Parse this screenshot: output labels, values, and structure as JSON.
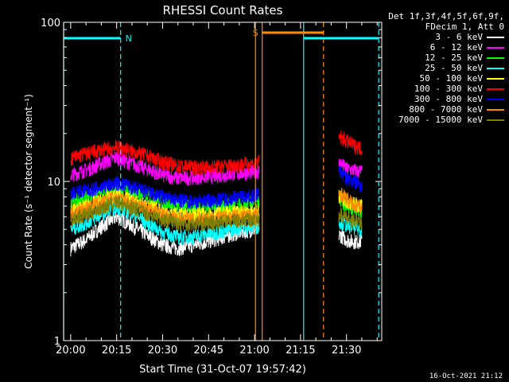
{
  "chart_data": {
    "type": "line",
    "title": "RHESSI Count Rates",
    "xlabel": "Start Time (31-Oct-07 19:57:42)",
    "ylabel": "Count Rate (s⁻¹ detector segment⁻¹)",
    "x_ticks": [
      "20:00",
      "20:15",
      "20:30",
      "20:45",
      "21:00",
      "21:15",
      "21:30"
    ],
    "x_tick_minutes": [
      0,
      15,
      30,
      45,
      60,
      75,
      90
    ],
    "x_range_minutes": [
      -2.3,
      101.5
    ],
    "y_scale": "log",
    "y_ticks": [
      "1",
      "10",
      "100"
    ],
    "ylim": [
      1,
      100
    ],
    "data_gap_minutes": [
      61.5,
      87.5
    ],
    "time_minutes": [
      0,
      5,
      10,
      15,
      20,
      25,
      30,
      35,
      40,
      45,
      50,
      55,
      60,
      88,
      90,
      92,
      95
    ],
    "series": [
      {
        "name": "3 - 6 keV",
        "color": "#ffffff",
        "values": [
          3.8,
          4.3,
          5.2,
          6.0,
          5.3,
          4.6,
          4.0,
          3.8,
          4.0,
          4.2,
          4.5,
          4.8,
          5.0,
          4.6,
          4.3,
          4.2,
          4.2
        ]
      },
      {
        "name": "6 - 12 keV",
        "color": "#ff00ff",
        "values": [
          11.0,
          11.8,
          13.0,
          14.2,
          13.0,
          12.0,
          11.0,
          10.5,
          10.6,
          10.8,
          11.0,
          11.3,
          11.5,
          13.0,
          12.0,
          11.8,
          11.5
        ]
      },
      {
        "name": "12 - 25 keV",
        "color": "#00ff00",
        "values": [
          7.5,
          8.0,
          8.6,
          9.0,
          8.6,
          8.0,
          7.5,
          7.0,
          7.0,
          7.0,
          7.0,
          7.2,
          7.3,
          7.5,
          7.0,
          6.8,
          6.6
        ]
      },
      {
        "name": "25 - 50 keV",
        "color": "#00ffff",
        "values": [
          5.0,
          5.5,
          6.2,
          7.0,
          6.3,
          5.5,
          4.8,
          4.5,
          4.5,
          4.7,
          4.9,
          5.1,
          5.2,
          5.6,
          5.3,
          5.2,
          5.0
        ]
      },
      {
        "name": "50 - 100 keV",
        "color": "#ffff00",
        "values": [
          6.6,
          7.0,
          7.6,
          8.2,
          7.6,
          7.0,
          6.5,
          6.2,
          6.2,
          6.3,
          6.3,
          6.4,
          6.5,
          8.0,
          7.6,
          7.3,
          7.0
        ]
      },
      {
        "name": "100 - 300 keV",
        "color": "#ff0000",
        "values": [
          14.0,
          15.0,
          15.8,
          16.5,
          15.5,
          14.5,
          13.3,
          12.5,
          12.3,
          12.3,
          12.5,
          12.8,
          13.0,
          19.0,
          18.0,
          17.0,
          16.0
        ]
      },
      {
        "name": "300 - 800 keV",
        "color": "#0000ff",
        "values": [
          8.5,
          8.8,
          9.2,
          9.8,
          9.2,
          8.6,
          8.0,
          7.6,
          7.5,
          7.6,
          7.8,
          8.0,
          8.2,
          11.5,
          10.5,
          10.0,
          9.5
        ]
      },
      {
        "name": "800 - 7000 keV",
        "color": "#ff8c00",
        "values": [
          6.3,
          6.8,
          7.4,
          8.0,
          7.4,
          6.8,
          6.2,
          5.9,
          5.8,
          5.9,
          6.0,
          6.1,
          6.2,
          8.5,
          7.8,
          7.2,
          6.8
        ]
      },
      {
        "name": "7000 - 15000 keV",
        "color": "#808000",
        "values": [
          5.8,
          6.2,
          6.8,
          7.4,
          6.9,
          6.3,
          5.8,
          5.5,
          5.4,
          5.5,
          5.6,
          5.7,
          5.8,
          6.2,
          5.9,
          5.7,
          5.5
        ]
      }
    ],
    "markers": [
      {
        "type": "bar",
        "label": "N",
        "color": "#00ffff",
        "start_minute": -2.3,
        "end_minute": 16.3
      },
      {
        "type": "bar",
        "label": "S",
        "color": "#ff8c00",
        "start_minute": 62.5,
        "end_minute": 82.5
      },
      {
        "type": "bar",
        "label": "",
        "color": "#00ffff",
        "start_minute": 76.0,
        "end_minute": 100.5
      }
    ],
    "vertical_lines": [
      {
        "minute": -2.3,
        "color": "#00ffff",
        "style": "solid"
      },
      {
        "minute": 16.3,
        "color": "#00ffff",
        "style": "dashed"
      },
      {
        "minute": 60.3,
        "color": "#ff8c00",
        "style": "solid"
      },
      {
        "minute": 62.5,
        "color": "#ff8c00",
        "style": "solid"
      },
      {
        "minute": 76.0,
        "color": "#00ffff",
        "style": "solid"
      },
      {
        "minute": 82.5,
        "color": "#ff8c00",
        "style": "dashed"
      },
      {
        "minute": 100.5,
        "color": "#00ffff",
        "style": "dashed"
      }
    ],
    "grid": false
  },
  "legend": {
    "title_lines": [
      "Det 1f,3f,4f,5f,6f,9f,",
      "FDecim 1, Att 0"
    ]
  },
  "timestamp": "16-Oct-2021 21:12"
}
